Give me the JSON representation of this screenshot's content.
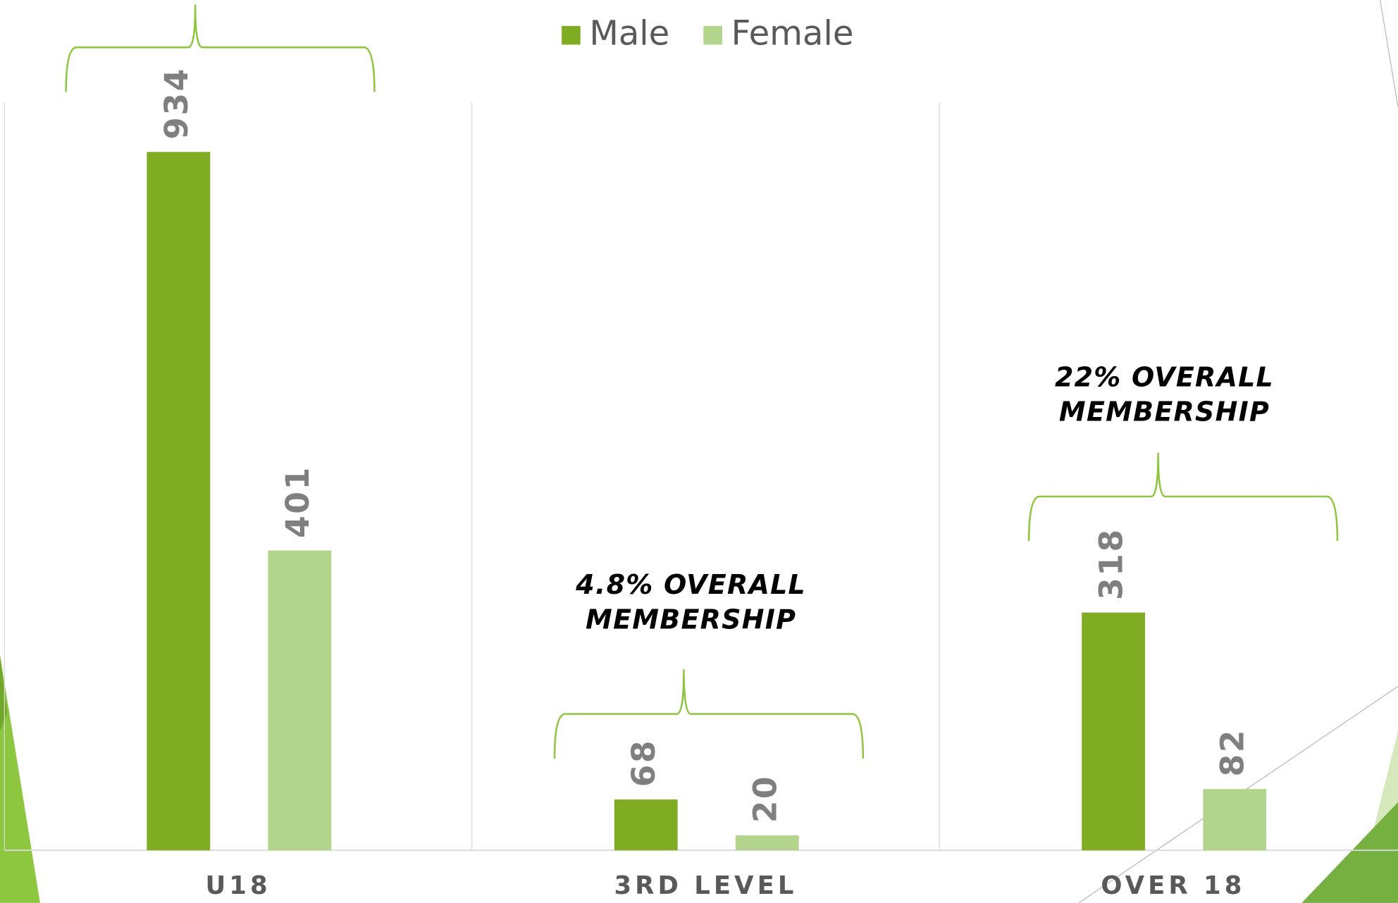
{
  "chart_data": {
    "type": "bar",
    "categories": [
      "U18",
      "3RD LEVEL",
      "OVER 18"
    ],
    "series": [
      {
        "name": "Male",
        "color": "#7fac22",
        "values": [
          934,
          68,
          318
        ]
      },
      {
        "name": "Female",
        "color": "#b3d48c",
        "values": [
          401,
          20,
          82
        ]
      }
    ],
    "ylim": [
      0,
      1000
    ],
    "legend": "top",
    "annotations": [
      [
        "4.8% OVERALL",
        "MEMBERSHIP"
      ],
      [
        "22% OVERALL",
        "MEMBERSHIP"
      ]
    ]
  }
}
